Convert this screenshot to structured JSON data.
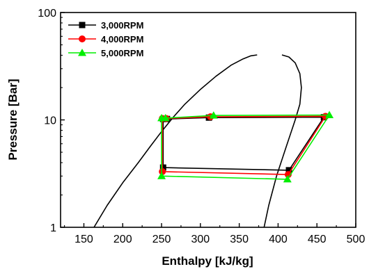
{
  "chart_data": {
    "type": "line",
    "title": "",
    "xlabel": "Enthalpy [kJ/kg]",
    "ylabel": "Pressure [Bar]",
    "xlim": [
      120,
      500
    ],
    "ylim": [
      1,
      100
    ],
    "y_scale": "log",
    "x_ticks": [
      150,
      200,
      250,
      300,
      350,
      400,
      450,
      500
    ],
    "y_ticks": [
      1,
      10,
      100
    ],
    "grid": false,
    "legend_position": "top-left",
    "saturation_dome": {
      "color": "#000000",
      "liquid_line": {
        "x": [
          163,
          180,
          200,
          220,
          235,
          250,
          265,
          280,
          300,
          320,
          340,
          355,
          365,
          373
        ],
        "y": [
          1.0,
          1.6,
          2.6,
          4.0,
          5.6,
          7.8,
          10.6,
          14.0,
          19.2,
          25.5,
          32.5,
          37.0,
          39.5,
          40.3
        ]
      },
      "vapor_line": {
        "x": [
          405,
          414,
          422,
          428,
          430,
          428,
          422,
          410,
          398,
          388,
          382
        ],
        "y": [
          40.3,
          38.5,
          34.0,
          27.0,
          20.0,
          14.0,
          10.0,
          5.5,
          3.0,
          1.6,
          1.0
        ]
      }
    },
    "series": [
      {
        "name": "3,000RPM",
        "color": "#000000",
        "marker": "square",
        "x": [
          252,
          257,
          311,
          459,
          414,
          252,
          252
        ],
        "y": [
          10.2,
          10.2,
          10.5,
          10.6,
          3.4,
          3.6,
          10.2
        ]
      },
      {
        "name": "4,000RPM",
        "color": "#ff0000",
        "marker": "circle",
        "x": [
          251,
          256,
          313,
          461,
          413,
          251,
          251
        ],
        "y": [
          10.3,
          10.3,
          10.7,
          10.8,
          3.1,
          3.3,
          10.3
        ]
      },
      {
        "name": "5,000RPM",
        "color": "#00ee00",
        "marker": "triangle",
        "x": [
          250,
          255,
          317,
          466,
          412,
          250,
          250
        ],
        "y": [
          10.4,
          10.4,
          11.0,
          11.1,
          2.8,
          3.0,
          10.4
        ]
      }
    ]
  }
}
